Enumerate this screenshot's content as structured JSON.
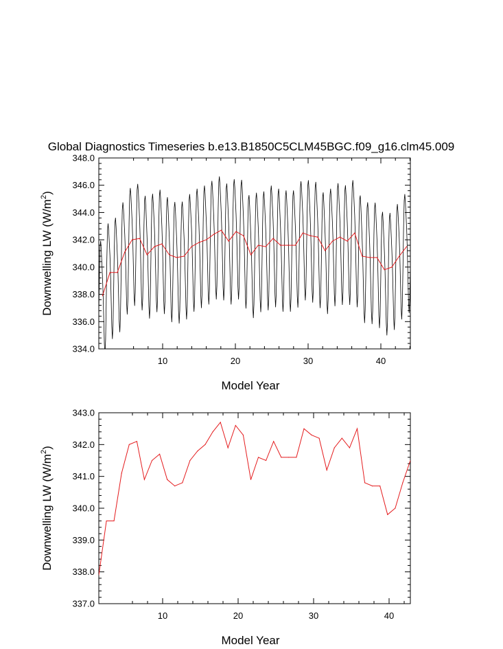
{
  "title": "Global Diagnostics Timeseries b.e13.B1850C5CLM45BGC.f09_g16.clm45.009",
  "colors": {
    "monthly": "#000000",
    "annual": "#e41a1c",
    "axes": "#000000"
  },
  "chart_data": [
    {
      "type": "line",
      "title": "Global Diagnostics Timeseries b.e13.B1850C5CLM45BGC.f09_g16.clm45.009",
      "xlabel": "Model Year",
      "ylabel_main": "Downwelling LW (W/m",
      "ylabel_sup": "2",
      "ylabel_end": ")",
      "xlim": [
        1,
        43
      ],
      "ylim": [
        334,
        348
      ],
      "xticks": [
        "10",
        "20",
        "30",
        "40"
      ],
      "yticks": [
        "334.0",
        "336.0",
        "338.0",
        "340.0",
        "342.0",
        "344.0",
        "346.0",
        "348.0"
      ],
      "grid": false,
      "seasonal_amplitude_approx": 4.2,
      "series": [
        {
          "kind": "annual_mean",
          "x": [
            1.5,
            2.5,
            3.5,
            4.5,
            5.5,
            6.5,
            7.5,
            8.5,
            9.5,
            10.5,
            11.5,
            12.5,
            13.5,
            14.5,
            15.5,
            16.5,
            17.5,
            18.5,
            19.5,
            20.5,
            21.5,
            22.5,
            23.5,
            24.5,
            25.5,
            26.5,
            27.5,
            28.5,
            29.5,
            30.5,
            31.5,
            32.5,
            33.5,
            34.5,
            35.5,
            36.5,
            37.5,
            38.5,
            39.5,
            40.5,
            41.5,
            42.5
          ],
          "values": [
            337.9,
            339.6,
            339.6,
            341.1,
            342.0,
            342.1,
            340.9,
            341.5,
            341.7,
            340.9,
            340.7,
            340.8,
            341.5,
            341.8,
            342.0,
            342.4,
            342.7,
            341.9,
            342.6,
            342.3,
            340.9,
            341.6,
            341.5,
            342.1,
            341.6,
            341.6,
            341.6,
            342.5,
            342.3,
            342.2,
            341.2,
            341.9,
            342.2,
            341.9,
            342.5,
            340.8,
            340.7,
            340.7,
            339.8,
            340.0,
            340.8,
            341.5
          ]
        }
      ]
    },
    {
      "type": "line",
      "xlabel": "Model Year",
      "ylabel_main": "Downwelling LW (W/m",
      "ylabel_sup": "2",
      "ylabel_end": ")",
      "xlim": [
        1,
        42
      ],
      "ylim": [
        337,
        343
      ],
      "xticks": [
        "10",
        "20",
        "30",
        "40"
      ],
      "yticks": [
        "337.0",
        "338.0",
        "339.0",
        "340.0",
        "341.0",
        "342.0",
        "343.0"
      ],
      "grid": false,
      "series": [
        {
          "kind": "annual_mean",
          "x": [
            1,
            2,
            3,
            4,
            5,
            6,
            7,
            8,
            9,
            10,
            11,
            12,
            13,
            14,
            15,
            16,
            17,
            18,
            19,
            20,
            21,
            22,
            23,
            24,
            25,
            26,
            27,
            28,
            29,
            30,
            31,
            32,
            33,
            34,
            35,
            36,
            37,
            38,
            39,
            40,
            41,
            42
          ],
          "values": [
            337.9,
            339.6,
            339.6,
            341.1,
            342.0,
            342.1,
            340.9,
            341.5,
            341.7,
            340.9,
            340.7,
            340.8,
            341.5,
            341.8,
            342.0,
            342.4,
            342.7,
            341.9,
            342.6,
            342.3,
            340.9,
            341.6,
            341.5,
            342.1,
            341.6,
            341.6,
            341.6,
            342.5,
            342.3,
            342.2,
            341.2,
            341.9,
            342.2,
            341.9,
            342.5,
            340.8,
            340.7,
            340.7,
            339.8,
            340.0,
            340.8,
            341.5
          ]
        }
      ]
    }
  ]
}
